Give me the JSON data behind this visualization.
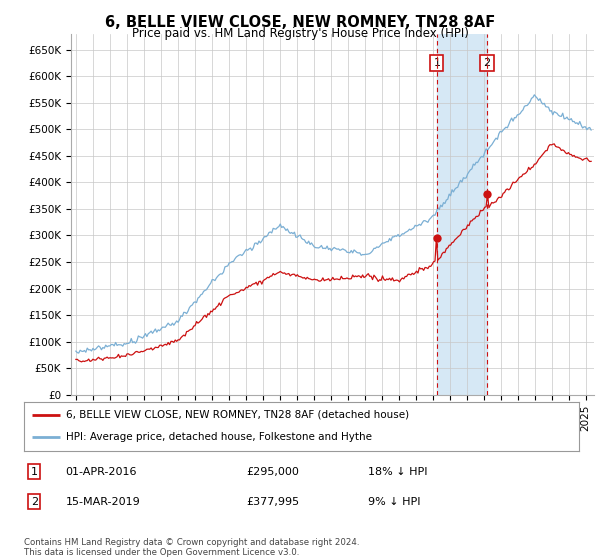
{
  "title": "6, BELLE VIEW CLOSE, NEW ROMNEY, TN28 8AF",
  "subtitle": "Price paid vs. HM Land Registry's House Price Index (HPI)",
  "ylabel_ticks": [
    "£0",
    "£50K",
    "£100K",
    "£150K",
    "£200K",
    "£250K",
    "£300K",
    "£350K",
    "£400K",
    "£450K",
    "£500K",
    "£550K",
    "£600K",
    "£650K"
  ],
  "ytick_values": [
    0,
    50000,
    100000,
    150000,
    200000,
    250000,
    300000,
    350000,
    400000,
    450000,
    500000,
    550000,
    600000,
    650000
  ],
  "ylim": [
    0,
    680000
  ],
  "xlim_start": 1994.7,
  "xlim_end": 2025.5,
  "hpi_color": "#7bafd4",
  "hpi_fill_color": "#d6e8f5",
  "sale_color": "#cc1111",
  "sale1_x": 2016.25,
  "sale1_y": 295000,
  "sale2_x": 2019.21,
  "sale2_y": 377995,
  "vline_color": "#cc1111",
  "legend_label1": "6, BELLE VIEW CLOSE, NEW ROMNEY, TN28 8AF (detached house)",
  "legend_label2": "HPI: Average price, detached house, Folkestone and Hythe",
  "table_row1": [
    "1",
    "01-APR-2016",
    "£295,000",
    "18% ↓ HPI"
  ],
  "table_row2": [
    "2",
    "15-MAR-2019",
    "£377,995",
    "9% ↓ HPI"
  ],
  "footer": "Contains HM Land Registry data © Crown copyright and database right 2024.\nThis data is licensed under the Open Government Licence v3.0.",
  "background_color": "#ffffff",
  "grid_color": "#c8c8c8"
}
